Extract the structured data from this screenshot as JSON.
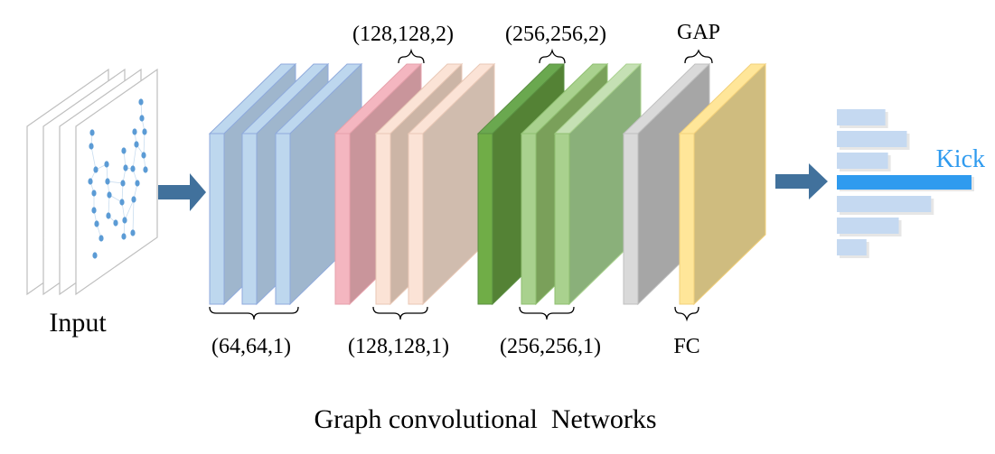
{
  "caption": "Graph convolutional  Networks",
  "input": {
    "label": "Input",
    "node_color": "#5b9bd5"
  },
  "layer_groups": [
    {
      "name": "conv-64",
      "bottom_label": "(64,64,1)",
      "top_label": "",
      "colors": [
        "#9fb6cd",
        "#9fb6cd",
        "#9fb6cd"
      ],
      "front_color": "#bdd7ee"
    },
    {
      "name": "conv-128",
      "bottom_label": "(128,128,1)",
      "top_label": "(128,128,2)",
      "colors": [
        "#c9959b",
        "#ccb5a6",
        "#d0bcae"
      ]
    },
    {
      "name": "conv-256",
      "bottom_label": "(256,256,1)",
      "top_label": "(256,256,2)",
      "colors": [
        "#548235",
        "#7aa05a",
        "#8ab07a"
      ]
    },
    {
      "name": "gap-fc",
      "bottom_label": "FC",
      "top_label": "GAP",
      "colors": [
        "#a6a6a6",
        "#cfbc7f"
      ]
    }
  ],
  "output": {
    "label": "Kick",
    "label_color": "#2f9bef",
    "highlight_color": "#2f9bef",
    "bar_color": "#c5d9f1",
    "bar_values": [
      0.36,
      0.52,
      0.38,
      1.0,
      0.7,
      0.46,
      0.22
    ],
    "highlight_index": 3
  },
  "arrow_color": "#41719c"
}
